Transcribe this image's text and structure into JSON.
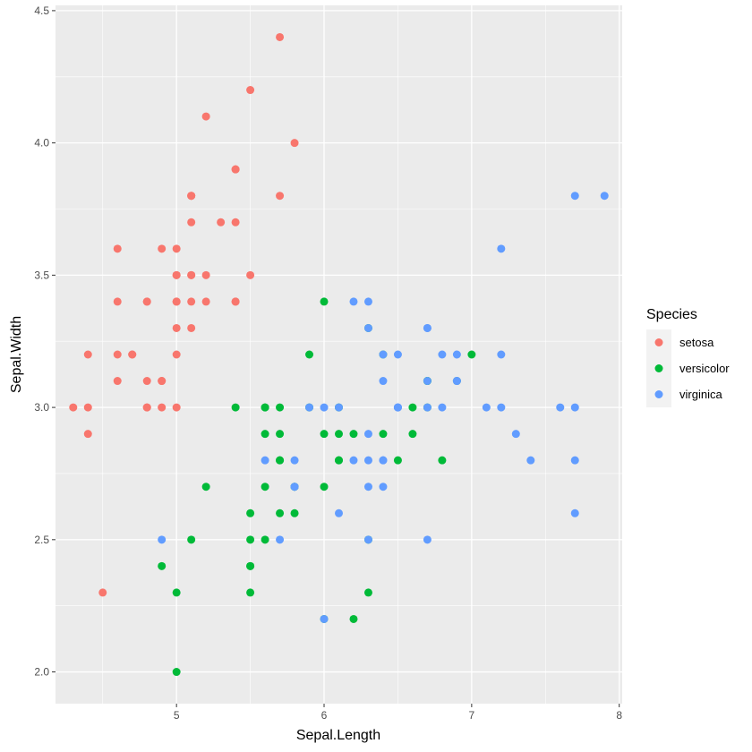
{
  "chart_data": {
    "type": "scatter",
    "xlabel": "Sepal.Length",
    "ylabel": "Sepal.Width",
    "xlim": [
      4.18,
      8.02
    ],
    "ylim": [
      1.88,
      4.52
    ],
    "x_ticks": [
      5,
      6,
      7,
      8
    ],
    "x_tick_labels": [
      "5",
      "6",
      "7",
      "8"
    ],
    "y_ticks": [
      2.0,
      2.5,
      3.0,
      3.5,
      4.0,
      4.5
    ],
    "y_tick_labels": [
      "2.0",
      "2.5",
      "3.0",
      "3.5",
      "4.0",
      "4.5"
    ],
    "grid": true,
    "legend": {
      "title": "Species",
      "placement": "right"
    },
    "series": [
      {
        "name": "setosa",
        "color": "#F8766D",
        "x": [
          5.1,
          4.9,
          4.7,
          4.6,
          5.0,
          5.4,
          4.6,
          5.0,
          4.4,
          4.9,
          5.4,
          4.8,
          4.8,
          4.3,
          5.8,
          5.7,
          5.4,
          5.1,
          5.7,
          5.1,
          5.4,
          5.1,
          4.6,
          5.1,
          4.8,
          5.0,
          5.0,
          5.2,
          5.2,
          4.7,
          4.8,
          5.4,
          5.2,
          5.5,
          4.9,
          5.0,
          5.5,
          4.9,
          4.4,
          5.1,
          5.0,
          4.5,
          4.4,
          5.0,
          5.1,
          4.8,
          5.1,
          4.6,
          5.3,
          5.0
        ],
        "y": [
          3.5,
          3.0,
          3.2,
          3.1,
          3.6,
          3.9,
          3.4,
          3.4,
          2.9,
          3.1,
          3.7,
          3.4,
          3.0,
          3.0,
          4.0,
          4.4,
          3.9,
          3.5,
          3.8,
          3.8,
          3.4,
          3.7,
          3.6,
          3.3,
          3.4,
          3.0,
          3.4,
          3.5,
          3.4,
          3.2,
          3.1,
          3.4,
          4.1,
          4.2,
          3.1,
          3.2,
          3.5,
          3.6,
          3.0,
          3.4,
          3.5,
          2.3,
          3.2,
          3.5,
          3.8,
          3.0,
          3.8,
          3.2,
          3.7,
          3.3
        ]
      },
      {
        "name": "versicolor",
        "color": "#00BA38",
        "x": [
          7.0,
          6.4,
          6.9,
          5.5,
          6.5,
          5.7,
          6.3,
          4.9,
          6.6,
          5.2,
          5.0,
          5.9,
          6.0,
          6.1,
          5.6,
          6.7,
          5.6,
          5.8,
          6.2,
          5.6,
          5.9,
          6.1,
          6.3,
          6.1,
          6.4,
          6.6,
          6.8,
          6.7,
          6.0,
          5.7,
          5.5,
          5.5,
          5.8,
          6.0,
          5.4,
          6.0,
          6.7,
          6.3,
          5.6,
          5.5,
          5.5,
          6.1,
          5.8,
          5.0,
          5.6,
          5.7,
          5.7,
          6.2,
          5.1,
          5.7
        ],
        "y": [
          3.2,
          3.2,
          3.1,
          2.3,
          2.8,
          2.8,
          3.3,
          2.4,
          2.9,
          2.7,
          2.0,
          3.0,
          2.2,
          2.9,
          2.9,
          3.1,
          3.0,
          2.7,
          2.2,
          2.5,
          3.2,
          2.8,
          2.5,
          2.8,
          2.9,
          3.0,
          2.8,
          3.0,
          2.9,
          2.6,
          2.4,
          2.4,
          2.7,
          2.7,
          3.0,
          3.4,
          3.1,
          2.3,
          3.0,
          2.5,
          2.6,
          3.0,
          2.6,
          2.3,
          2.7,
          3.0,
          2.9,
          2.9,
          2.5,
          2.8
        ]
      },
      {
        "name": "virginica",
        "color": "#619CFF",
        "x": [
          6.3,
          5.8,
          7.1,
          6.3,
          6.5,
          7.6,
          4.9,
          7.3,
          6.7,
          7.2,
          6.5,
          6.4,
          6.8,
          5.7,
          5.8,
          6.4,
          6.5,
          7.7,
          7.7,
          6.0,
          6.9,
          5.6,
          7.7,
          6.3,
          6.7,
          7.2,
          6.2,
          6.1,
          6.4,
          7.2,
          7.4,
          7.9,
          6.4,
          6.3,
          6.1,
          7.7,
          6.3,
          6.4,
          6.0,
          6.9,
          6.7,
          6.9,
          5.8,
          6.8,
          6.7,
          6.7,
          6.3,
          6.5,
          6.2,
          5.9
        ],
        "y": [
          3.3,
          2.7,
          3.0,
          2.9,
          3.0,
          3.0,
          2.5,
          2.9,
          2.5,
          3.6,
          3.2,
          2.7,
          3.0,
          2.5,
          2.8,
          3.2,
          3.0,
          3.8,
          2.6,
          2.2,
          3.2,
          2.8,
          2.8,
          2.7,
          3.3,
          3.2,
          2.8,
          3.0,
          2.8,
          3.0,
          2.8,
          3.8,
          2.8,
          2.8,
          2.6,
          3.0,
          3.4,
          3.1,
          3.0,
          3.1,
          3.1,
          3.1,
          2.7,
          3.2,
          3.3,
          3.0,
          2.5,
          3.0,
          3.4,
          3.0
        ]
      }
    ]
  }
}
